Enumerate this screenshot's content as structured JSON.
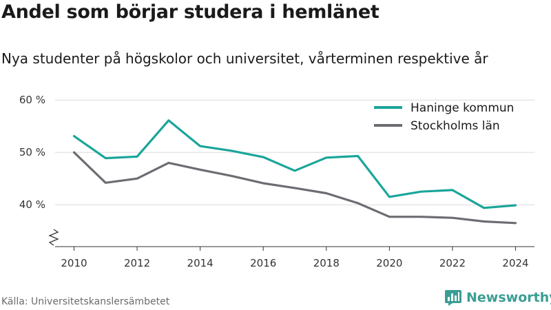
{
  "header": {
    "title": "Andel som börjar studera i hemlänet",
    "subtitle": "Nya studenter på högskolor och universitet, vårterminen respektive år"
  },
  "footer": {
    "source": "Källa: Universitetskanslersämbetet",
    "brand": "Newsworthy",
    "brand_color": "#3a9e94",
    "brand_icon": "bar-chart-logo-icon"
  },
  "chart_data": {
    "type": "line",
    "x": [
      2010,
      2011,
      2012,
      2013,
      2014,
      2015,
      2016,
      2017,
      2018,
      2019,
      2020,
      2021,
      2022,
      2023,
      2024
    ],
    "series": [
      {
        "name": "Haninge kommun",
        "color": "#1aa59a",
        "values": [
          53.1,
          48.9,
          49.2,
          56.1,
          51.2,
          50.3,
          49.1,
          46.5,
          49.0,
          49.3,
          41.5,
          42.5,
          42.8,
          39.4,
          39.9
        ]
      },
      {
        "name": "Stockholms län",
        "color": "#6e6c72",
        "values": [
          50.0,
          44.2,
          45.0,
          48.0,
          46.7,
          45.5,
          44.1,
          43.2,
          42.2,
          40.3,
          37.7,
          37.7,
          37.5,
          36.8,
          36.5
        ]
      }
    ],
    "y_ticks": [
      40,
      50,
      60
    ],
    "y_tick_labels": [
      "40 %",
      "50 %",
      "60 %"
    ],
    "x_ticks": [
      2010,
      2012,
      2014,
      2016,
      2018,
      2020,
      2022,
      2024
    ],
    "x_tick_labels": [
      "2010",
      "2012",
      "2014",
      "2016",
      "2018",
      "2020",
      "2022",
      "2024"
    ],
    "ylim": [
      32,
      62
    ],
    "xlim": [
      2009.4,
      2024.6
    ],
    "y_axis_break": true,
    "grid": "horizontal",
    "legend_position": "top-right"
  }
}
